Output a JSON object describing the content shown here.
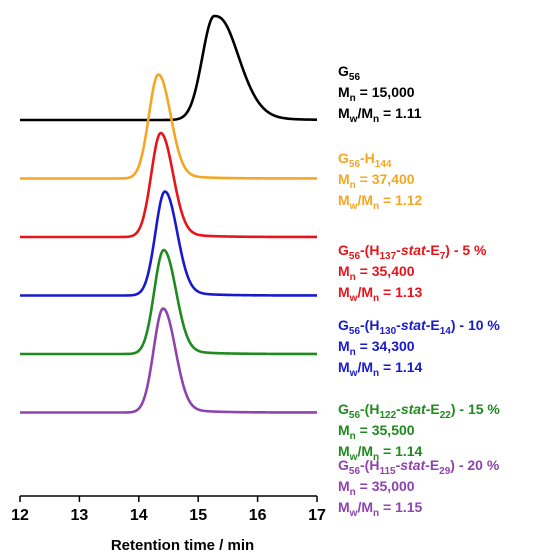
{
  "chart_data": {
    "type": "line",
    "xlabel": "Retention time / min",
    "ylabel": "",
    "xlim": [
      12,
      17
    ],
    "xticks": [
      "12",
      "13",
      "14",
      "15",
      "16",
      "17"
    ],
    "grid": false,
    "y_axis_shown": false,
    "series": [
      {
        "name": "G56",
        "color": "#000000",
        "peak_x": 15.27,
        "sigma_left": 0.2,
        "sigma_right": 0.38,
        "tail": 0.13,
        "amplitude": 1.0,
        "baseline_offset": 0,
        "label": {
          "line1": {
            "main": "G",
            "sub": "56"
          },
          "mn": "M",
          "mn_sub": "n",
          "mn_value": " = 15,000",
          "mw": "M",
          "mw_sub": "w",
          "mw_slash": "/M",
          "mw_sub2": "n",
          "mw_value": " = 1.11"
        }
      },
      {
        "name": "G56-H144",
        "color": "#f5a623",
        "peak_x": 14.33,
        "sigma_left": 0.16,
        "sigma_right": 0.2,
        "tail": 0.06,
        "amplitude": 1.0,
        "baseline_offset": 1,
        "label": {
          "line1": {
            "main": "G",
            "sub": "56",
            "rest": "-H",
            "sub2": "144"
          },
          "mn": "M",
          "mn_sub": "n",
          "mn_value": " = 37,400",
          "mw": "M",
          "mw_sub": "w",
          "mw_slash": "/M",
          "mw_sub2": "n",
          "mw_value": " = 1.12"
        }
      },
      {
        "name": "G56-(H137-stat-E7) - 5 %",
        "color": "#e8141c",
        "peak_x": 14.37,
        "sigma_left": 0.16,
        "sigma_right": 0.2,
        "tail": 0.06,
        "amplitude": 1.0,
        "baseline_offset": 2,
        "label": {
          "line1": {
            "main": "G",
            "sub": "56",
            "a": "-(H",
            "sub2": "137",
            "b": "-",
            "italic": "stat",
            "c": "-E",
            "sub3": "7",
            "d": ") - 5 %"
          },
          "mn": "M",
          "mn_sub": "n",
          "mn_value": " = 35,400",
          "mw": "M",
          "mw_sub": "w",
          "mw_slash": "/M",
          "mw_sub2": "n",
          "mw_value": " = 1.13"
        }
      },
      {
        "name": "G56-(H130-stat-E14) - 10 %",
        "color": "#1a1acd",
        "peak_x": 14.44,
        "sigma_left": 0.16,
        "sigma_right": 0.2,
        "tail": 0.06,
        "amplitude": 1.0,
        "baseline_offset": 3,
        "label": {
          "line1": {
            "main": "G",
            "sub": "56",
            "a": "-(H",
            "sub2": "130",
            "b": "-",
            "italic": "stat",
            "c": "-E",
            "sub3": "14",
            "d": ") - 10 %"
          },
          "mn": "M",
          "mn_sub": "n",
          "mn_value": " = 34,300",
          "mw": "M",
          "mw_sub": "w",
          "mw_slash": "/M",
          "mw_sub2": "n",
          "mw_value": " = 1.14"
        }
      },
      {
        "name": "G56-(H122-stat-E22) - 15 %",
        "color": "#1f8a1f",
        "peak_x": 14.42,
        "sigma_left": 0.16,
        "sigma_right": 0.2,
        "tail": 0.06,
        "amplitude": 1.0,
        "baseline_offset": 4,
        "label": {
          "line1": {
            "main": "G",
            "sub": "56",
            "a": "-(H",
            "sub2": "122",
            "b": "-",
            "italic": "stat",
            "c": "-E",
            "sub3": "22",
            "d": ") - 15 %"
          },
          "mn": "M",
          "mn_sub": "n",
          "mn_value": " = 35,500",
          "mw": "M",
          "mw_sub": "w",
          "mw_slash": "/M",
          "mw_sub2": "n",
          "mw_value": " = 1.14"
        }
      },
      {
        "name": "G56-(H115-stat-E29) - 20 %",
        "color": "#8e44ad",
        "peak_x": 14.41,
        "sigma_left": 0.16,
        "sigma_right": 0.2,
        "tail": 0.06,
        "amplitude": 1.0,
        "baseline_offset": 5,
        "label": {
          "line1": {
            "main": "G",
            "sub": "56",
            "a": "-(H",
            "sub2": "115",
            "b": "-",
            "italic": "stat",
            "c": "-E",
            "sub3": "29",
            "d": ") - 20 %"
          },
          "mn": "M",
          "mn_sub": "n",
          "mn_value": " = 35,000",
          "mw": "M",
          "mw_sub": "w",
          "mw_slash": "/M",
          "mw_sub2": "n",
          "mw_value": " = 1.15"
        }
      }
    ]
  }
}
